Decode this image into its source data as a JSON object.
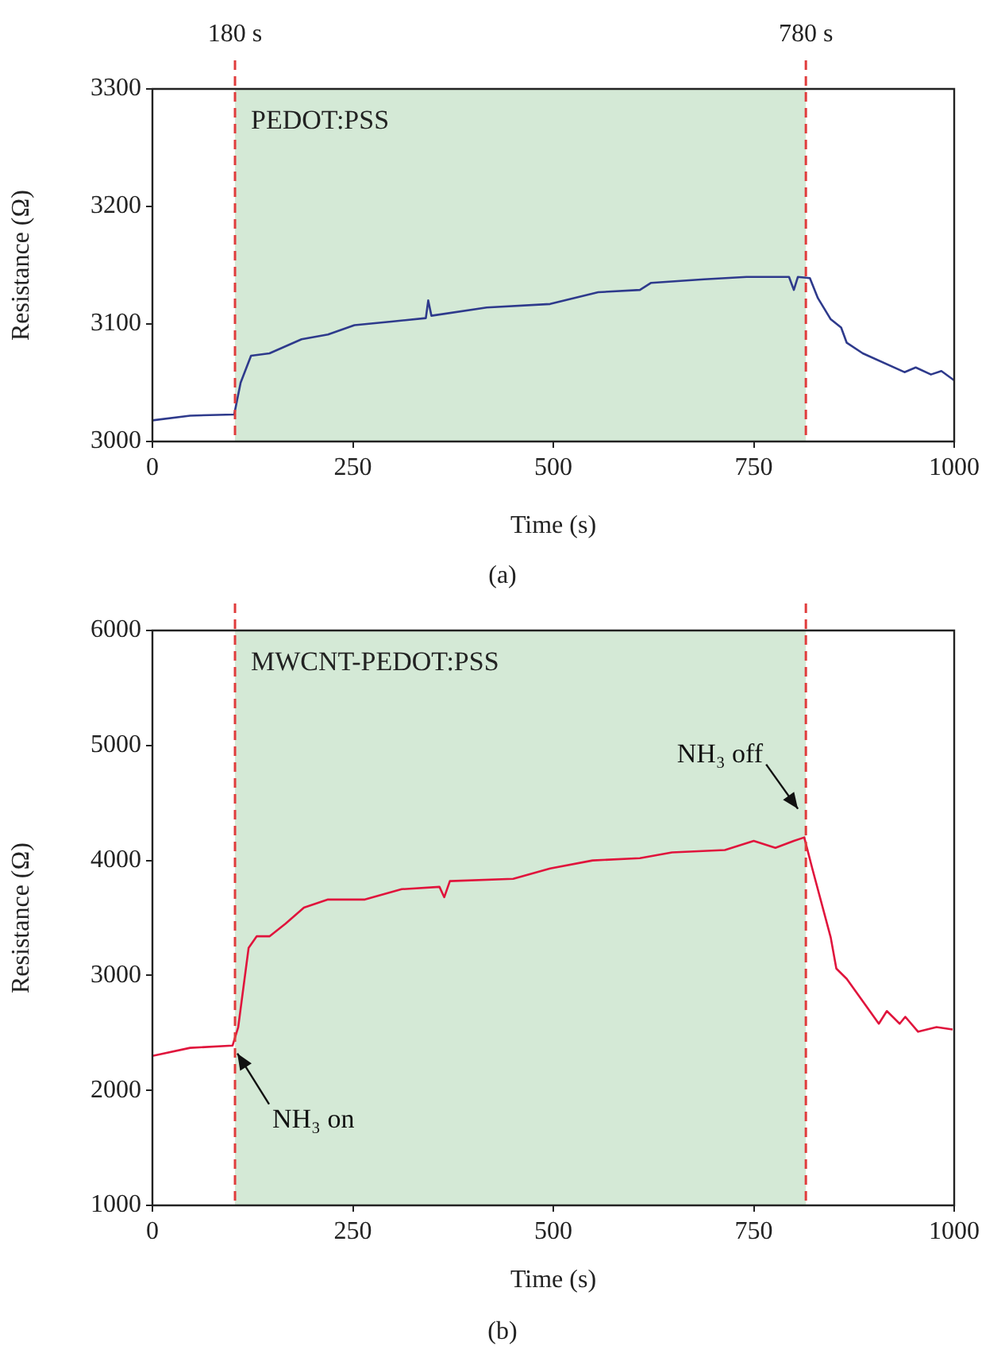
{
  "chart_data": [
    {
      "type": "line",
      "title": "PEDOT:PSS",
      "xlabel": "Time (s)",
      "ylabel": "Resistance (Ω)",
      "xlim": [
        0,
        1000
      ],
      "xticks": [
        0,
        250,
        500,
        750,
        1000
      ],
      "ylim": [
        3000,
        3300
      ],
      "yticks": [
        3000,
        3100,
        3200,
        3300
      ],
      "grid": false,
      "legend": false,
      "marker": "none",
      "line_style": "solid",
      "x": [
        0,
        47,
        102,
        110,
        123,
        146,
        186,
        219,
        252,
        298,
        341,
        344,
        348,
        417,
        496,
        556,
        608,
        622,
        688,
        741,
        794,
        800,
        805,
        820,
        830,
        846,
        859,
        866,
        886,
        938,
        952,
        971,
        984,
        1000
      ],
      "series": [
        {
          "color": "#2e3a8c",
          "values": [
            3018,
            3022,
            3023,
            3050,
            3073,
            3075,
            3087,
            3091,
            3099,
            3102,
            3105,
            3120,
            3107,
            3114,
            3117,
            3127,
            3129,
            3135,
            3138,
            3140,
            3140,
            3129,
            3140,
            3139,
            3122,
            3104,
            3097,
            3084,
            3075,
            3059,
            3063,
            3057,
            3060,
            3052
          ]
        }
      ],
      "bands": [
        {
          "axis": "x",
          "from": 103,
          "to": 815,
          "color": "#d4e9d6"
        }
      ],
      "ref_lines": [
        {
          "axis": "x",
          "value": 103,
          "label": "180 s",
          "color": "#e03c3c",
          "line_style": "dashed"
        },
        {
          "axis": "x",
          "value": 815,
          "label": "780 s",
          "color": "#e03c3c",
          "line_style": "dashed"
        }
      ],
      "annotations": [
        "(a)"
      ]
    },
    {
      "type": "line",
      "title": "MWCNT-PEDOT:PSS",
      "xlabel": "Time (s)",
      "ylabel": "Resistance (Ω)",
      "xlim": [
        0,
        1000
      ],
      "xticks": [
        0,
        250,
        500,
        750,
        1000
      ],
      "ylim": [
        1000,
        6000
      ],
      "yticks": [
        1000,
        2000,
        3000,
        4000,
        5000,
        6000
      ],
      "grid": false,
      "legend": false,
      "marker": "none",
      "line_style": "solid",
      "x": [
        0,
        47,
        100,
        107,
        120,
        130,
        146,
        166,
        189,
        219,
        265,
        311,
        358,
        364,
        371,
        450,
        496,
        549,
        608,
        648,
        714,
        750,
        777,
        800,
        813,
        823,
        846,
        853,
        866,
        906,
        916,
        932,
        939,
        955,
        978,
        998
      ],
      "series": [
        {
          "color": "#e0143c",
          "values": [
            2300,
            2370,
            2390,
            2550,
            3240,
            3340,
            3340,
            3450,
            3590,
            3660,
            3660,
            3750,
            3770,
            3680,
            3820,
            3840,
            3930,
            4000,
            4020,
            4070,
            4090,
            4170,
            4110,
            4170,
            4200,
            3930,
            3330,
            3060,
            2970,
            2580,
            2690,
            2580,
            2640,
            2510,
            2550,
            2530
          ]
        }
      ],
      "bands": [
        {
          "axis": "x",
          "from": 103,
          "to": 815,
          "color": "#d4e9d6"
        }
      ],
      "ref_lines": [
        {
          "axis": "x",
          "value": 103,
          "color": "#e03c3c",
          "line_style": "dashed"
        },
        {
          "axis": "x",
          "value": 815,
          "color": "#e03c3c",
          "line_style": "dashed"
        }
      ],
      "annotations": [
        "(b)",
        {
          "text": "NH₃ on",
          "x": 100,
          "y": 2390
        },
        {
          "text": "NH₃ off",
          "x": 813,
          "y": 4200
        }
      ]
    }
  ]
}
